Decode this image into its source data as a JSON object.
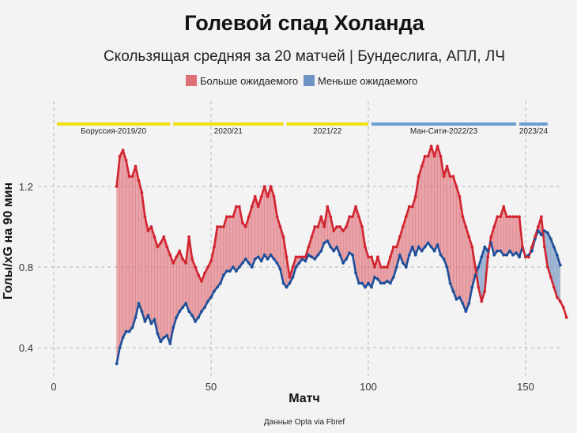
{
  "chart_data": {
    "type": "area",
    "title": "Голевой спад Холанда",
    "subtitle": "Скользящая средняя за 20 матчей | Бундеслига, АПЛ, ЛЧ",
    "xlabel": "Матч",
    "ylabel": "Голы/xG на 90 мин",
    "source": "Данные Opta via Fbref",
    "xlim": [
      -5,
      160
    ],
    "ylim": [
      0.25,
      1.55
    ],
    "xticks": [
      0,
      50,
      100,
      150
    ],
    "yticks": [
      0.4,
      0.8,
      1.2
    ],
    "ytick_labels": [
      "0.4",
      "0.8",
      "1.2"
    ],
    "grid": true,
    "legend": [
      {
        "label": "Больше ожидаемого",
        "color": "#e07078"
      },
      {
        "label": "Меньше ожидаемого",
        "color": "#6f93c2"
      }
    ],
    "colors": {
      "goals": "#d12530",
      "xg": "#1f4f9a",
      "over": "#e07078",
      "under": "#6f93c2",
      "season_yellow": "#f2e014",
      "season_blue": "#6a9ed0"
    },
    "seasons": [
      {
        "label": "Боруссия-2019/20",
        "start": 1,
        "end": 37,
        "color": "#f2e014"
      },
      {
        "label": "2020/21",
        "start": 38,
        "end": 73,
        "color": "#f2e014"
      },
      {
        "label": "2021/22",
        "start": 74,
        "end": 100,
        "color": "#f2e014"
      },
      {
        "label": "Ман-Сити-2022/23",
        "start": 101,
        "end": 147,
        "color": "#6a9ed0"
      },
      {
        "label": "2023/24",
        "start": 148,
        "end": 157,
        "color": "#6a9ed0"
      }
    ],
    "series": [
      {
        "name": "Голы",
        "x_start": 20,
        "values": [
          1.2,
          1.35,
          1.38,
          1.33,
          1.25,
          1.25,
          1.3,
          1.23,
          1.17,
          1.05,
          0.98,
          1.0,
          0.95,
          0.9,
          0.92,
          0.95,
          0.9,
          0.86,
          0.82,
          0.85,
          0.88,
          0.84,
          0.82,
          0.95,
          0.84,
          0.8,
          0.76,
          0.73,
          0.77,
          0.8,
          0.83,
          0.9,
          1.0,
          1.0,
          1.0,
          1.05,
          1.05,
          1.05,
          1.1,
          1.1,
          1.02,
          1.0,
          1.05,
          1.1,
          1.15,
          1.1,
          1.15,
          1.2,
          1.15,
          1.2,
          1.15,
          1.05,
          1.0,
          0.95,
          0.85,
          0.75,
          0.8,
          0.85,
          0.85,
          0.85,
          0.85,
          0.9,
          0.95,
          1.0,
          1.0,
          1.05,
          1.0,
          1.1,
          1.05,
          0.98,
          1.0,
          1.0,
          0.98,
          1.0,
          1.05,
          1.05,
          1.1,
          1.05,
          1.0,
          0.9,
          0.85,
          0.85,
          0.8,
          0.85,
          0.8,
          0.8,
          0.8,
          0.85,
          0.9,
          0.9,
          0.95,
          1.0,
          1.05,
          1.1,
          1.1,
          1.15,
          1.25,
          1.3,
          1.35,
          1.35,
          1.4,
          1.35,
          1.4,
          1.35,
          1.25,
          1.3,
          1.25,
          1.25,
          1.2,
          1.15,
          1.05,
          1.0,
          0.95,
          0.9,
          0.8,
          0.7,
          0.63,
          0.68,
          0.85,
          0.95,
          1.0,
          1.05,
          1.05,
          1.1,
          1.05,
          1.05,
          1.05,
          1.05,
          1.05,
          0.9,
          0.85,
          0.85,
          0.9,
          0.95,
          1.0,
          1.05,
          0.9,
          0.8,
          0.75,
          0.7,
          0.65,
          0.63,
          0.6,
          0.55
        ]
      },
      {
        "name": "xG",
        "x_start": 20,
        "values": [
          0.32,
          0.4,
          0.45,
          0.48,
          0.48,
          0.5,
          0.55,
          0.62,
          0.58,
          0.53,
          0.56,
          0.52,
          0.54,
          0.47,
          0.43,
          0.45,
          0.46,
          0.42,
          0.5,
          0.55,
          0.58,
          0.6,
          0.62,
          0.58,
          0.56,
          0.53,
          0.55,
          0.58,
          0.6,
          0.63,
          0.65,
          0.68,
          0.7,
          0.72,
          0.76,
          0.78,
          0.78,
          0.8,
          0.78,
          0.8,
          0.82,
          0.84,
          0.82,
          0.8,
          0.84,
          0.85,
          0.83,
          0.86,
          0.84,
          0.86,
          0.84,
          0.82,
          0.79,
          0.72,
          0.7,
          0.72,
          0.75,
          0.8,
          0.82,
          0.84,
          0.83,
          0.86,
          0.85,
          0.84,
          0.86,
          0.88,
          0.92,
          0.93,
          0.9,
          0.88,
          0.9,
          0.86,
          0.82,
          0.84,
          0.87,
          0.86,
          0.77,
          0.72,
          0.72,
          0.7,
          0.72,
          0.7,
          0.75,
          0.74,
          0.72,
          0.72,
          0.73,
          0.72,
          0.75,
          0.8,
          0.86,
          0.82,
          0.8,
          0.86,
          0.9,
          0.86,
          0.9,
          0.88,
          0.9,
          0.92,
          0.9,
          0.88,
          0.91,
          0.86,
          0.84,
          0.8,
          0.72,
          0.68,
          0.64,
          0.65,
          0.62,
          0.58,
          0.62,
          0.7,
          0.76,
          0.8,
          0.85,
          0.9,
          0.88,
          0.92,
          0.86,
          0.88,
          0.88,
          0.86,
          0.86,
          0.88,
          0.86,
          0.87,
          0.85,
          0.9,
          0.85,
          0.86,
          0.88,
          0.94,
          0.98,
          0.96,
          0.98,
          0.97,
          0.94,
          0.9,
          0.86,
          0.81
        ]
      }
    ]
  }
}
